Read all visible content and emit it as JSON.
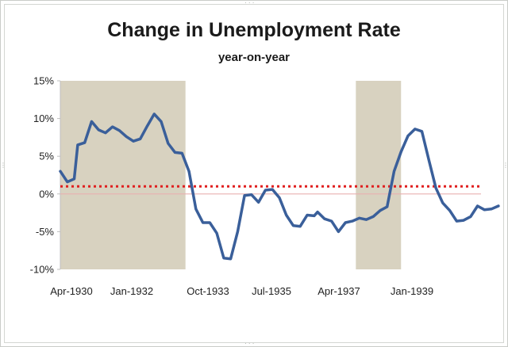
{
  "chart_data": {
    "type": "line",
    "title": "Change in Unemployment Rate",
    "subtitle": "year-on-year",
    "xlabel": "",
    "ylabel": "",
    "x_tick_labels": [
      "Apr-1930",
      "Jan-1932",
      "Oct-1933",
      "Jul-1935",
      "Apr-1937",
      "Jan-1939"
    ],
    "y_tick_labels": [
      "15%",
      "10%",
      "5%",
      "0%",
      "-5%",
      "-10%"
    ],
    "ylim": [
      -10,
      15
    ],
    "y_ticks": [
      15,
      10,
      5,
      0,
      -5,
      -10
    ],
    "x_range": [
      "1930-04",
      "1940-05"
    ],
    "grid": false,
    "legend": "none",
    "reference_line": {
      "value": 1,
      "style": "dotted",
      "color": "#e02020"
    },
    "shaded_periods": [
      {
        "start": "1930-04",
        "end": "1933-04"
      },
      {
        "start": "1937-05",
        "end": "1938-06"
      }
    ],
    "series": [
      {
        "color": "#3a5f9a",
        "points": [
          [
            "1930-04",
            3.0
          ],
          [
            "1930-06",
            1.6
          ],
          [
            "1930-08",
            2.0
          ],
          [
            "1930-09",
            6.5
          ],
          [
            "1930-11",
            6.8
          ],
          [
            "1931-01",
            9.6
          ],
          [
            "1931-03",
            8.5
          ],
          [
            "1931-05",
            8.1
          ],
          [
            "1931-07",
            8.9
          ],
          [
            "1931-09",
            8.4
          ],
          [
            "1931-11",
            7.6
          ],
          [
            "1932-01",
            7.0
          ],
          [
            "1932-03",
            7.3
          ],
          [
            "1932-05",
            9.0
          ],
          [
            "1932-07",
            10.6
          ],
          [
            "1932-09",
            9.6
          ],
          [
            "1932-11",
            6.7
          ],
          [
            "1933-01",
            5.5
          ],
          [
            "1933-03",
            5.4
          ],
          [
            "1933-05",
            3.0
          ],
          [
            "1933-07",
            -2.0
          ],
          [
            "1933-09",
            -3.8
          ],
          [
            "1933-11",
            -3.8
          ],
          [
            "1934-01",
            -5.2
          ],
          [
            "1934-03",
            -8.5
          ],
          [
            "1934-05",
            -8.6
          ],
          [
            "1934-07",
            -5.0
          ],
          [
            "1934-09",
            -0.2
          ],
          [
            "1934-11",
            -0.1
          ],
          [
            "1935-01",
            -1.1
          ],
          [
            "1935-03",
            0.5
          ],
          [
            "1935-05",
            0.6
          ],
          [
            "1935-07",
            -0.5
          ],
          [
            "1935-09",
            -2.8
          ],
          [
            "1935-11",
            -4.2
          ],
          [
            "1936-01",
            -4.3
          ],
          [
            "1936-03",
            -2.8
          ],
          [
            "1936-05",
            -2.9
          ],
          [
            "1936-06",
            -2.4
          ],
          [
            "1936-08",
            -3.3
          ],
          [
            "1936-10",
            -3.6
          ],
          [
            "1936-12",
            -5.0
          ],
          [
            "1937-02",
            -3.8
          ],
          [
            "1937-04",
            -3.6
          ],
          [
            "1937-06",
            -3.2
          ],
          [
            "1937-08",
            -3.4
          ],
          [
            "1937-10",
            -3.0
          ],
          [
            "1937-12",
            -2.2
          ],
          [
            "1938-02",
            -1.7
          ],
          [
            "1938-04",
            3.0
          ],
          [
            "1938-06",
            5.6
          ],
          [
            "1938-08",
            7.7
          ],
          [
            "1938-10",
            8.6
          ],
          [
            "1938-12",
            8.3
          ],
          [
            "1939-02",
            4.5
          ],
          [
            "1939-04",
            0.8
          ],
          [
            "1939-06",
            -1.2
          ],
          [
            "1939-08",
            -2.2
          ],
          [
            "1939-10",
            -3.6
          ],
          [
            "1939-12",
            -3.5
          ],
          [
            "1940-02",
            -3.0
          ],
          [
            "1940-04",
            -1.6
          ],
          [
            "1940-06",
            -2.1
          ],
          [
            "1940-08",
            -2.0
          ],
          [
            "1940-10",
            -1.6
          ]
        ]
      }
    ]
  },
  "colors": {
    "line": "#3a5f9a",
    "shade": "#d8d2c0",
    "reference": "#e02020",
    "zero_line": "#e8b0b0",
    "axis": "#bfbfbf"
  }
}
